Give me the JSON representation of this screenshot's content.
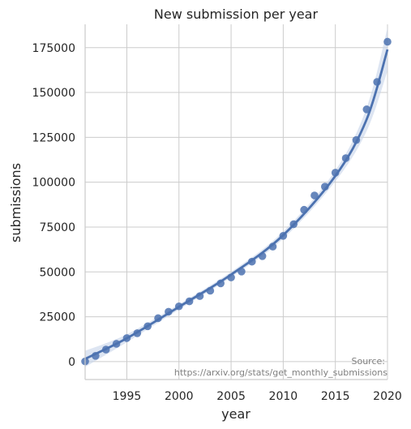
{
  "chart_data": {
    "type": "scatter",
    "title": "New submission per year",
    "xlabel": "year",
    "ylabel": "submissions",
    "xlim": [
      1991,
      2020
    ],
    "ylim": [
      -10000,
      188000
    ],
    "xticks": [
      1995,
      2000,
      2005,
      2010,
      2015,
      2020
    ],
    "yticks": [
      0,
      25000,
      50000,
      75000,
      100000,
      125000,
      150000,
      175000
    ],
    "grid": true,
    "series": [
      {
        "color": "#4c72b0",
        "x": [
          1991,
          1992,
          1993,
          1994,
          1995,
          1996,
          1997,
          1998,
          1999,
          2000,
          2001,
          2002,
          2003,
          2004,
          2005,
          2006,
          2007,
          2008,
          2009,
          2010,
          2011,
          2012,
          2013,
          2014,
          2015,
          2016,
          2017,
          2018,
          2019,
          2020
        ],
        "values": [
          100,
          3200,
          6700,
          9900,
          13100,
          15800,
          19700,
          24200,
          27800,
          30800,
          33600,
          36500,
          39500,
          43600,
          46900,
          50200,
          55700,
          58800,
          64100,
          70100,
          76600,
          84600,
          92600,
          97500,
          105300,
          113400,
          123500,
          140600,
          155900,
          178300
        ]
      }
    ],
    "fit": {
      "type": "regression-curve",
      "color": "#4c72b0",
      "ci_color": "#c6d4ea",
      "x": [
        1991,
        1995,
        2000,
        2005,
        2010,
        2015,
        2018,
        2020
      ],
      "y": [
        1500,
        13000,
        30500,
        48500,
        70500,
        103500,
        135000,
        174000
      ],
      "ci_half_width": [
        4500,
        2200,
        1500,
        1500,
        2000,
        3000,
        6500,
        12000
      ]
    },
    "annotation": {
      "line1": "Source:",
      "line2": "https://arxiv.org/stats/get_monthly_submissions"
    }
  }
}
